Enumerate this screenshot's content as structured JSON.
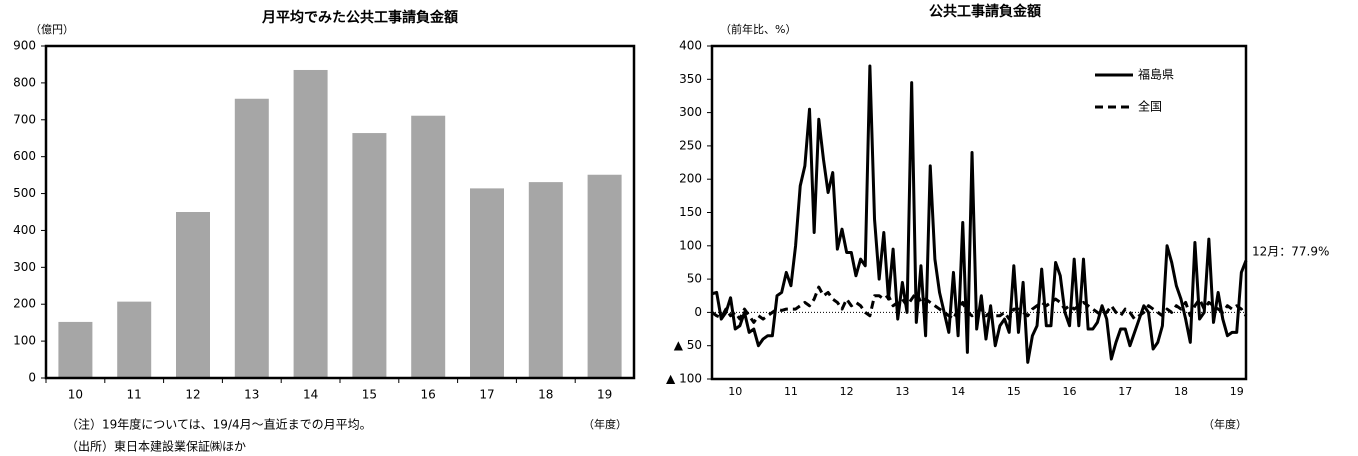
{
  "chart_data": [
    {
      "type": "bar",
      "title": "月平均でみた公共工事請負金額",
      "y_label": "（億円）",
      "x_label": "（年度）",
      "categories": [
        "10",
        "11",
        "12",
        "13",
        "14",
        "15",
        "16",
        "17",
        "18",
        "19"
      ],
      "values": [
        152,
        207,
        450,
        757,
        835,
        664,
        711,
        514,
        531,
        551
      ],
      "color": "#a6a6a6",
      "ylim": [
        0,
        900
      ],
      "yticks": [
        0,
        100,
        200,
        300,
        400,
        500,
        600,
        700,
        800,
        900
      ],
      "notes": [
        "（注）19年度については、19/4月～直近までの月平均。",
        "（出所）東日本建設業保証㈱ほか"
      ]
    },
    {
      "type": "line",
      "title": "公共工事請負金額",
      "y_label": "（前年比、%）",
      "x_label": "（年度）",
      "annotation": "12月：77.9%",
      "categories": [
        null,
        null,
        null,
        null,
        null,
        "10",
        null,
        null,
        null,
        null,
        null,
        null,
        null,
        null,
        null,
        null,
        null,
        "11",
        null,
        null,
        null,
        null,
        null,
        null,
        null,
        null,
        null,
        null,
        null,
        "12",
        null,
        null,
        null,
        null,
        null,
        null,
        null,
        null,
        null,
        null,
        null,
        "13",
        null,
        null,
        null,
        null,
        null,
        null,
        null,
        null,
        null,
        null,
        null,
        "14",
        null,
        null,
        null,
        null,
        null,
        null,
        null,
        null,
        null,
        null,
        null,
        "15",
        null,
        null,
        null,
        null,
        null,
        null,
        null,
        null,
        null,
        null,
        null,
        "16",
        null,
        null,
        null,
        null,
        null,
        null,
        null,
        null,
        null,
        null,
        null,
        "17",
        null,
        null,
        null,
        null,
        null,
        null,
        null,
        null,
        null,
        null,
        null,
        "18",
        null,
        null,
        null,
        null,
        null,
        null,
        null,
        null,
        null,
        null,
        null,
        "19",
        null,
        null
      ],
      "ylim": [
        -100,
        400
      ],
      "yticks": [
        400,
        350,
        300,
        250,
        200,
        150,
        100,
        50,
        0,
        {
          "value": -50,
          "label": "▲ 50"
        },
        {
          "value": -100,
          "label": "▲ 100"
        }
      ],
      "legend": "upper right",
      "series": [
        {
          "name": "福島県",
          "color": "#000000",
          "dash": "solid",
          "values": [
            28,
            30,
            -10,
            0,
            22,
            -25,
            -20,
            0,
            -30,
            -25,
            -50,
            -40,
            -35,
            -35,
            25,
            30,
            60,
            40,
            100,
            190,
            220,
            305,
            120,
            290,
            230,
            180,
            210,
            95,
            125,
            90,
            90,
            55,
            80,
            70,
            370,
            140,
            50,
            120,
            20,
            95,
            -10,
            45,
            0,
            345,
            -15,
            70,
            -35,
            220,
            80,
            30,
            0,
            -30,
            60,
            -35,
            135,
            -60,
            240,
            -25,
            25,
            -40,
            10,
            -50,
            -20,
            -10,
            -30,
            70,
            -30,
            45,
            -75,
            -35,
            -20,
            65,
            -20,
            -20,
            75,
            55,
            0,
            -20,
            80,
            -20,
            80,
            -25,
            -25,
            -15,
            10,
            -10,
            -70,
            -45,
            -25,
            -25,
            -50,
            -30,
            -10,
            10,
            0,
            -55,
            -45,
            -20,
            100,
            75,
            40,
            20,
            -10,
            -45,
            105,
            -10,
            0,
            110,
            -15,
            30,
            -10,
            -35,
            -30,
            -30,
            60,
            77.9
          ]
        },
        {
          "name": "全国",
          "color": "#000000",
          "dash": "dashed",
          "values": [
            0,
            -5,
            -8,
            5,
            -5,
            0,
            -10,
            5,
            -5,
            -15,
            -5,
            -10,
            -5,
            0,
            5,
            3,
            5,
            5,
            5,
            10,
            15,
            10,
            20,
            38,
            25,
            30,
            20,
            15,
            5,
            20,
            10,
            15,
            10,
            0,
            -5,
            25,
            25,
            20,
            25,
            10,
            15,
            20,
            10,
            20,
            30,
            15,
            20,
            15,
            10,
            5,
            0,
            -5,
            -10,
            5,
            15,
            0,
            -5,
            0,
            5,
            -5,
            0,
            -5,
            -5,
            0,
            -10,
            5,
            5,
            0,
            -5,
            5,
            10,
            15,
            10,
            15,
            20,
            15,
            5,
            10,
            5,
            10,
            15,
            10,
            5,
            0,
            -5,
            0,
            10,
            0,
            -5,
            5,
            0,
            -10,
            -5,
            0,
            10,
            5,
            0,
            -5,
            5,
            0,
            10,
            5,
            15,
            -5,
            10,
            20,
            5,
            15,
            10,
            5,
            0,
            10,
            5,
            10,
            5,
            -5
          ]
        }
      ]
    }
  ]
}
